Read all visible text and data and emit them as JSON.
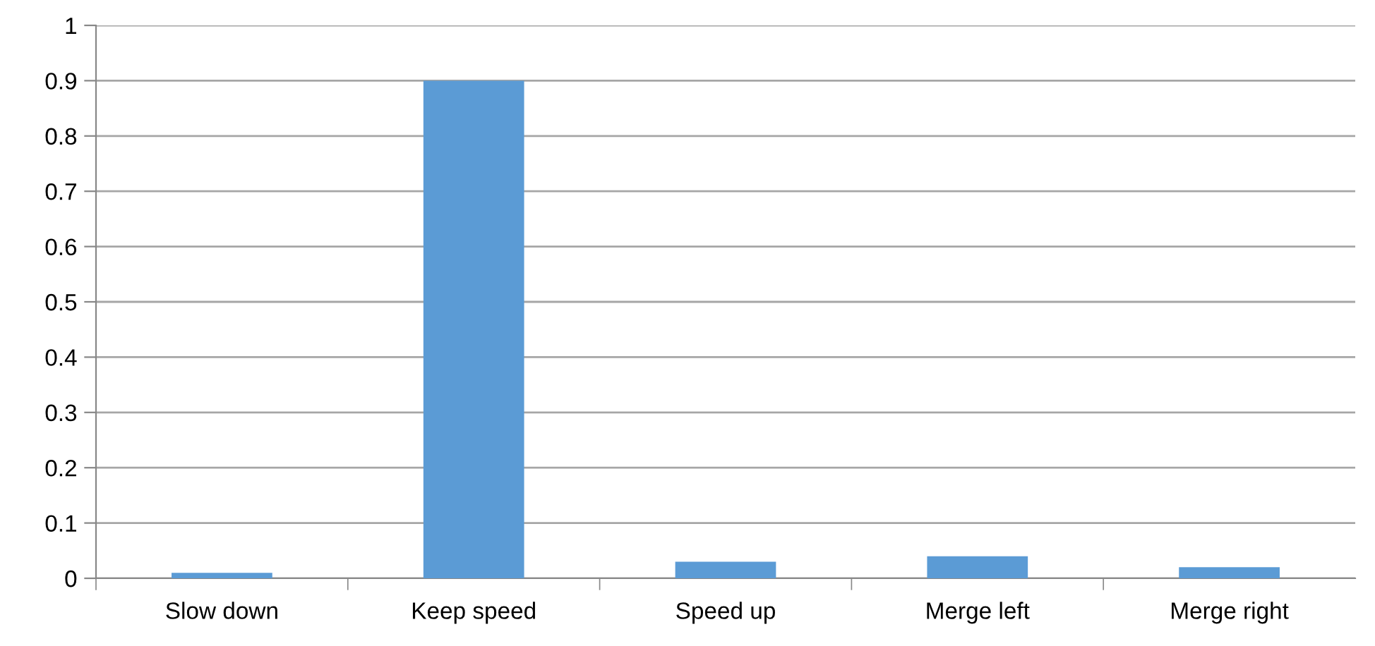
{
  "chart_data": {
    "type": "bar",
    "categories": [
      "Slow down",
      "Keep speed",
      "Speed up",
      "Merge left",
      "Merge right"
    ],
    "values": [
      0.01,
      0.9,
      0.03,
      0.04,
      0.02
    ],
    "color": "#5b9bd5",
    "ylim": [
      0,
      1
    ],
    "yticks": [
      0,
      0.1,
      0.2,
      0.3,
      0.4,
      0.5,
      0.6,
      0.7,
      0.8,
      0.9,
      1
    ],
    "grid": "y"
  }
}
